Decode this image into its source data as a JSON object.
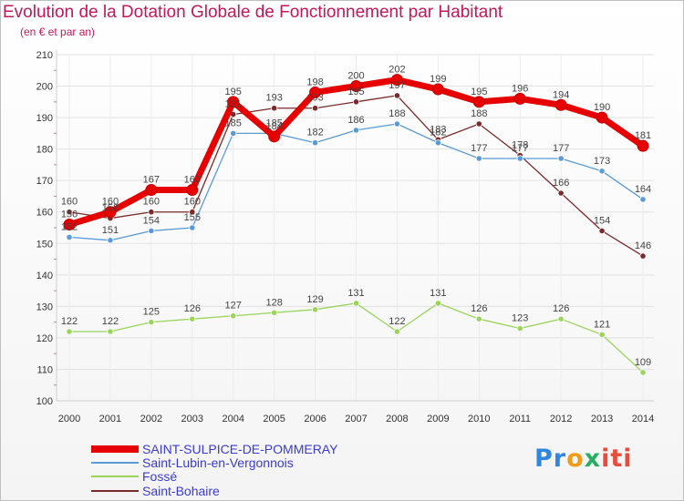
{
  "chart_data": {
    "type": "line",
    "title": "Evolution de la Dotation Globale de Fonctionnement par Habitant",
    "subtitle": "(en € et par an)",
    "xlabel": "",
    "ylabel": "",
    "ylim": [
      100,
      210
    ],
    "yticks": [
      100,
      110,
      120,
      130,
      140,
      150,
      160,
      170,
      180,
      190,
      200,
      210
    ],
    "x": [
      "2000",
      "2001",
      "2002",
      "2003",
      "2004",
      "2005",
      "2006",
      "2007",
      "2008",
      "2009",
      "2010",
      "2011",
      "2012",
      "2013",
      "2014"
    ],
    "legend_position": "bottom-left",
    "series": [
      {
        "name": "SAINT-SULPICE-DE-POMMERAY",
        "color": "#e60000",
        "values": [
          156,
          160,
          167,
          167,
          195,
          184,
          198,
          200,
          202,
          199,
          195,
          196,
          194,
          190,
          181
        ],
        "labels": [
          "156",
          "160",
          "167",
          "167",
          "195",
          "184",
          "198",
          "200",
          "202",
          "199",
          "195",
          "196",
          "194",
          "190",
          "181"
        ]
      },
      {
        "name": "Saint-Lubin-en-Vergonnois",
        "color": "#5b9bd5",
        "values": [
          152,
          151,
          154,
          155,
          185,
          185,
          182,
          186,
          188,
          182,
          177,
          177,
          177,
          173,
          164
        ],
        "labels": [
          "152",
          "151",
          "154",
          "155",
          "185",
          "185",
          "182",
          "186",
          "188",
          "182",
          "177",
          "177",
          "177",
          "173",
          "164"
        ]
      },
      {
        "name": "Fossé",
        "color": "#9ad45b",
        "values": [
          122,
          122,
          125,
          126,
          127,
          128,
          129,
          131,
          122,
          131,
          126,
          123,
          126,
          121,
          109
        ],
        "labels": [
          "122",
          "122",
          "125",
          "126",
          "127",
          "128",
          "129",
          "131",
          "122",
          "131",
          "126",
          "123",
          "126",
          "121",
          "109"
        ]
      },
      {
        "name": "Saint-Bohaire",
        "color": "#7a2a2a",
        "values": [
          160,
          158,
          160,
          160,
          191,
          193,
          193,
          195,
          197,
          183,
          188,
          178,
          166,
          154,
          146
        ],
        "labels": [
          "160",
          "158",
          "160",
          "160",
          "191",
          "193",
          "193",
          "195",
          "197",
          "183",
          "188",
          "178",
          "166",
          "154",
          "146"
        ]
      }
    ]
  },
  "logo": {
    "parts": [
      "Pr",
      "o",
      "x",
      "iti"
    ]
  }
}
